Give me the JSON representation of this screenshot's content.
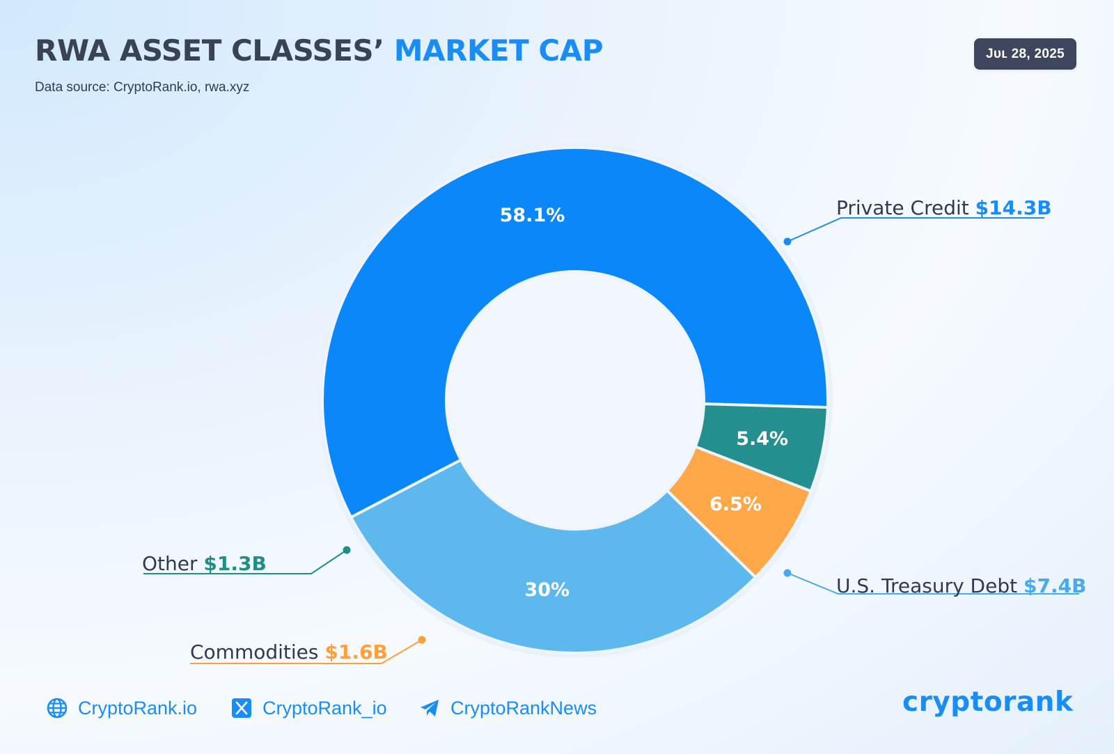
{
  "header": {
    "title_main": "RWA ASSET CLASSES’",
    "title_accent": "MARKET CAP",
    "subtitle": "Data source: CryptoRank.io, rwa.xyz",
    "date": "Jᴜʟ 28, 2025"
  },
  "chart_data": {
    "type": "pie",
    "variant": "donut",
    "title": "RWA ASSET CLASSES’ MARKET CAP",
    "unit": "$ billions",
    "slices": [
      {
        "label": "Private Credit",
        "value_label": "$14.3B",
        "value": 14.3,
        "percent": 58.1,
        "percent_label": "58.1%",
        "color": "#0a87fb",
        "label_color": "#1a8cf5"
      },
      {
        "label": "U.S. Treasury Debt",
        "value_label": "$7.4B",
        "value": 7.4,
        "percent": 30,
        "percent_label": "30%",
        "color": "#5db8ee",
        "label_color": "#4aa9e6"
      },
      {
        "label": "Commodities",
        "value_label": "$1.6B",
        "value": 1.6,
        "percent": 6.5,
        "percent_label": "6.5%",
        "color": "#ffa84a",
        "label_color": "#ff9f3a"
      },
      {
        "label": "Other",
        "value_label": "$1.3B",
        "value": 1.3,
        "percent": 5.4,
        "percent_label": "5.4%",
        "color": "#258f8f",
        "label_color": "#1f8f84"
      }
    ]
  },
  "footer": {
    "links": [
      {
        "label": "CryptoRank.io",
        "icon": "globe-icon"
      },
      {
        "label": "CryptoRank_io",
        "icon": "x-logo-icon"
      },
      {
        "label": "CryptoRankNews",
        "icon": "telegram-icon"
      }
    ],
    "brand": "cryptorank"
  }
}
